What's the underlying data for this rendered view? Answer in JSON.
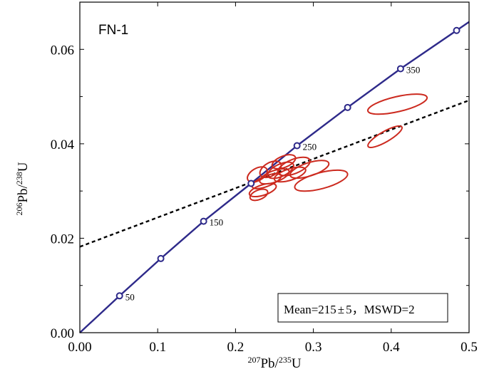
{
  "chart_data": {
    "type": "concordia",
    "sample_label": "FN-1",
    "xlabel": {
      "parts": [
        {
          "text": "207",
          "sup": true
        },
        {
          "text": "Pb/",
          "sup": false
        },
        {
          "text": "235",
          "sup": true
        },
        {
          "text": "U",
          "sup": false
        }
      ]
    },
    "ylabel": {
      "parts": [
        {
          "text": "206",
          "sup": true
        },
        {
          "text": "Pb/",
          "sup": false
        },
        {
          "text": "238",
          "sup": true
        },
        {
          "text": "U",
          "sup": false
        }
      ]
    },
    "xlim": [
      0.0,
      0.5
    ],
    "ylim": [
      0.0,
      0.07
    ],
    "x_ticks": [
      "0.00",
      "0.1",
      "0.2",
      "0.3",
      "0.4",
      "0.5"
    ],
    "x_tick_values": [
      0.0,
      0.1,
      0.2,
      0.3,
      0.4,
      0.5
    ],
    "y_ticks": [
      "0.00",
      "0.02",
      "0.04",
      "0.06"
    ],
    "y_tick_values": [
      0.0,
      0.02,
      0.04,
      0.06
    ],
    "y_minor_values": [
      0.01,
      0.03,
      0.05
    ],
    "colors": {
      "concordia": "#2e2a8a",
      "ellipse": "#cc2a1f",
      "discordia": "#000000"
    },
    "concordia_points": [
      {
        "x": 0.051,
        "y": 0.0078,
        "label": "50"
      },
      {
        "x": 0.104,
        "y": 0.0157,
        "label": ""
      },
      {
        "x": 0.159,
        "y": 0.0236,
        "label": "150"
      },
      {
        "x": 0.22,
        "y": 0.0316,
        "label": ""
      },
      {
        "x": 0.279,
        "y": 0.0396,
        "label": "250"
      },
      {
        "x": 0.344,
        "y": 0.0477,
        "label": ""
      },
      {
        "x": 0.412,
        "y": 0.0559,
        "label": "350"
      },
      {
        "x": 0.484,
        "y": 0.064,
        "label": ""
      }
    ],
    "discordia": {
      "x_start": 0.0,
      "y_start": 0.0182,
      "x_end": 0.5,
      "y_end": 0.0492
    },
    "ellipses": [
      {
        "cx": 0.408,
        "cy": 0.0484,
        "rx": 0.039,
        "ry": 0.0016,
        "angle_deg": -13
      },
      {
        "cx": 0.392,
        "cy": 0.0415,
        "rx": 0.025,
        "ry": 0.0011,
        "angle_deg": -30
      },
      {
        "cx": 0.31,
        "cy": 0.0322,
        "rx": 0.035,
        "ry": 0.0017,
        "angle_deg": -15
      },
      {
        "cx": 0.295,
        "cy": 0.0346,
        "rx": 0.026,
        "ry": 0.0014,
        "angle_deg": -18
      },
      {
        "cx": 0.275,
        "cy": 0.0352,
        "rx": 0.022,
        "ry": 0.0015,
        "angle_deg": -22
      },
      {
        "cx": 0.27,
        "cy": 0.0335,
        "rx": 0.021,
        "ry": 0.0012,
        "angle_deg": -18
      },
      {
        "cx": 0.258,
        "cy": 0.0344,
        "rx": 0.018,
        "ry": 0.0013,
        "angle_deg": -25
      },
      {
        "cx": 0.25,
        "cy": 0.0331,
        "rx": 0.02,
        "ry": 0.0012,
        "angle_deg": -20
      },
      {
        "cx": 0.245,
        "cy": 0.0346,
        "rx": 0.015,
        "ry": 0.0014,
        "angle_deg": -30
      },
      {
        "cx": 0.24,
        "cy": 0.0321,
        "rx": 0.02,
        "ry": 0.0011,
        "angle_deg": -22
      },
      {
        "cx": 0.235,
        "cy": 0.0302,
        "rx": 0.018,
        "ry": 0.0011,
        "angle_deg": -18
      },
      {
        "cx": 0.228,
        "cy": 0.0335,
        "rx": 0.014,
        "ry": 0.0013,
        "angle_deg": -30
      },
      {
        "cx": 0.262,
        "cy": 0.0362,
        "rx": 0.016,
        "ry": 0.0012,
        "angle_deg": -22
      },
      {
        "cx": 0.23,
        "cy": 0.0292,
        "rx": 0.012,
        "ry": 0.001,
        "angle_deg": -22
      }
    ],
    "result": {
      "mean_label": "Mean=215",
      "pm": "±",
      "mean_err": "5，MSWD=2"
    }
  }
}
